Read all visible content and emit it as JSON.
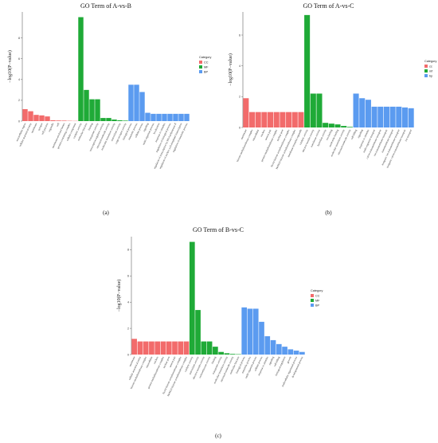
{
  "colors": {
    "CC": "#f26b6b",
    "MF": "#1faa37",
    "BP": "#5b9bf0",
    "axis": "#444444"
  },
  "chart_data": [
    {
      "type": "bar",
      "panel_label": "(a)",
      "title": "GO Term of A-vs-B",
      "ylabel": "−log10(P−value)",
      "ylim": [
        0,
        10.5
      ],
      "yticks": [
        0,
        2,
        4,
        6,
        8
      ],
      "legend_title": "Category",
      "legend": [
        "CC",
        "MF",
        "BP"
      ],
      "categories": [
        "extracellular region",
        "cellular anatomical entity",
        "membrane",
        "synapse",
        "cell junction",
        "organelle",
        "cell",
        "membrane-enclosed lumen",
        "protein-containing complex",
        "cellular component",
        "catalytic activity",
        "molecular function",
        "binding",
        "transporter activity",
        "transcription regulator activity",
        "structural molecule activity",
        "molecular transducer activity",
        "antioxidant activity",
        "cargo receptor activity",
        "biological process",
        "metabolic process",
        "cellular process",
        "signaling",
        "multi-organism process",
        "localization",
        "response to stimulus",
        "regulation of biological process",
        "regulation of transcription by RNA polymerase II",
        "regulation of nucleic acid-templated transcription",
        "regulation of metabolic process"
      ],
      "groups": [
        "CC",
        "CC",
        "CC",
        "CC",
        "CC",
        "CC",
        "CC",
        "CC",
        "CC",
        "CC",
        "MF",
        "MF",
        "MF",
        "MF",
        "MF",
        "MF",
        "MF",
        "MF",
        "MF",
        "BP",
        "BP",
        "BP",
        "BP",
        "BP",
        "BP",
        "BP",
        "BP",
        "BP",
        "BP",
        "BP"
      ],
      "values": [
        1.15,
        0.95,
        0.6,
        0.55,
        0.45,
        0.08,
        0.06,
        0.05,
        0.03,
        0.02,
        10.0,
        3.0,
        2.1,
        2.1,
        0.3,
        0.3,
        0.15,
        0.08,
        0.05,
        3.5,
        3.5,
        2.8,
        0.8,
        0.7,
        0.7,
        0.7,
        0.7,
        0.7,
        0.7,
        0.7
      ]
    },
    {
      "type": "bar",
      "panel_label": "(b)",
      "title": "GO Term of A-vs-C",
      "ylabel": "−log10(P−value)",
      "ylim": [
        0,
        7.5
      ],
      "yticks": [
        0,
        2,
        4,
        6
      ],
      "legend_title": "Category",
      "legend": [
        "cc",
        "mf",
        "bp"
      ],
      "categories": [
        "membrane",
        "histone methyltransferase complex",
        "intracellular",
        "nucleus",
        "neuron part",
        "protein methyltransferase complex",
        "nuclear pore",
        "NuA4 histone acetyltransferase complex",
        "H4/H2A histone acetyltransferase complex",
        "membrane-bounded organelle",
        "catalytic activity",
        "electron transfer activity",
        "transferase activity",
        "hydrolase activity",
        "ion binding",
        "nucleotide binding",
        "molecular transducer activity",
        "structural molecule activity",
        "cell killing",
        "signaling",
        "response to stimulus",
        "multi-organism transport",
        "cation transmembrane transport",
        "ion transmembrane transport",
        "transmembrane transport",
        "inorganic ion transmembrane transport",
        "inorganic cation transmembrane transport",
        "ion transport"
      ],
      "groups": [
        "CC",
        "CC",
        "CC",
        "CC",
        "CC",
        "CC",
        "CC",
        "CC",
        "CC",
        "CC",
        "MF",
        "MF",
        "MF",
        "MF",
        "MF",
        "MF",
        "MF",
        "MF",
        "BP",
        "BP",
        "BP",
        "BP",
        "BP",
        "BP",
        "BP",
        "BP",
        "BP",
        "BP"
      ],
      "values": [
        1.9,
        1.0,
        1.0,
        1.0,
        1.0,
        1.0,
        1.0,
        1.0,
        1.0,
        1.0,
        7.3,
        2.2,
        2.2,
        0.3,
        0.25,
        0.2,
        0.1,
        0.04,
        2.2,
        1.9,
        1.8,
        1.35,
        1.35,
        1.35,
        1.35,
        1.35,
        1.3,
        1.25
      ]
    },
    {
      "type": "bar",
      "panel_label": "(c)",
      "title": "GO Term of  B-vs-C",
      "ylabel": "−log10(P−value)",
      "ylim": [
        0,
        9.0
      ],
      "yticks": [
        0,
        2,
        4,
        6,
        8
      ],
      "legend_title": "Category",
      "legend": [
        "CC",
        "MF",
        "BP"
      ],
      "categories": [
        "membrane",
        "cellular anatomical entity",
        "histone methyltransferase complex",
        "intracellular",
        "nucleus",
        "protein methyltransferase complex",
        "nuclear pore",
        "neuron part",
        "NuA4 histone acetyltransferase complex",
        "H4/H2A histone acetyltransferase complex",
        "catalytic activity",
        "antioxidant activity",
        "electron transfer activity",
        "oxidoreductase activity",
        "binding",
        "transporter activity",
        "molecular transducer activity",
        "structural molecule activity",
        "molecular function",
        "biological process",
        "metabolic process",
        "multi-organism process",
        "cellular process",
        "response to stimulus",
        "signaling",
        "cell killing",
        "biological regulation",
        "growth",
        "multicellular organismal process",
        "developmental process"
      ],
      "groups": [
        "CC",
        "CC",
        "CC",
        "CC",
        "CC",
        "CC",
        "CC",
        "CC",
        "CC",
        "CC",
        "MF",
        "MF",
        "MF",
        "MF",
        "MF",
        "MF",
        "MF",
        "MF",
        "MF",
        "BP",
        "BP",
        "BP",
        "BP",
        "BP",
        "BP",
        "BP",
        "BP",
        "BP",
        "BP",
        "BP"
      ],
      "values": [
        1.2,
        1.0,
        1.0,
        1.0,
        1.0,
        1.0,
        1.0,
        1.0,
        1.0,
        1.0,
        8.6,
        3.4,
        1.0,
        1.0,
        0.6,
        0.2,
        0.1,
        0.05,
        0.03,
        3.6,
        3.5,
        3.5,
        2.5,
        1.4,
        1.1,
        0.8,
        0.6,
        0.4,
        0.3,
        0.2
      ]
    }
  ]
}
